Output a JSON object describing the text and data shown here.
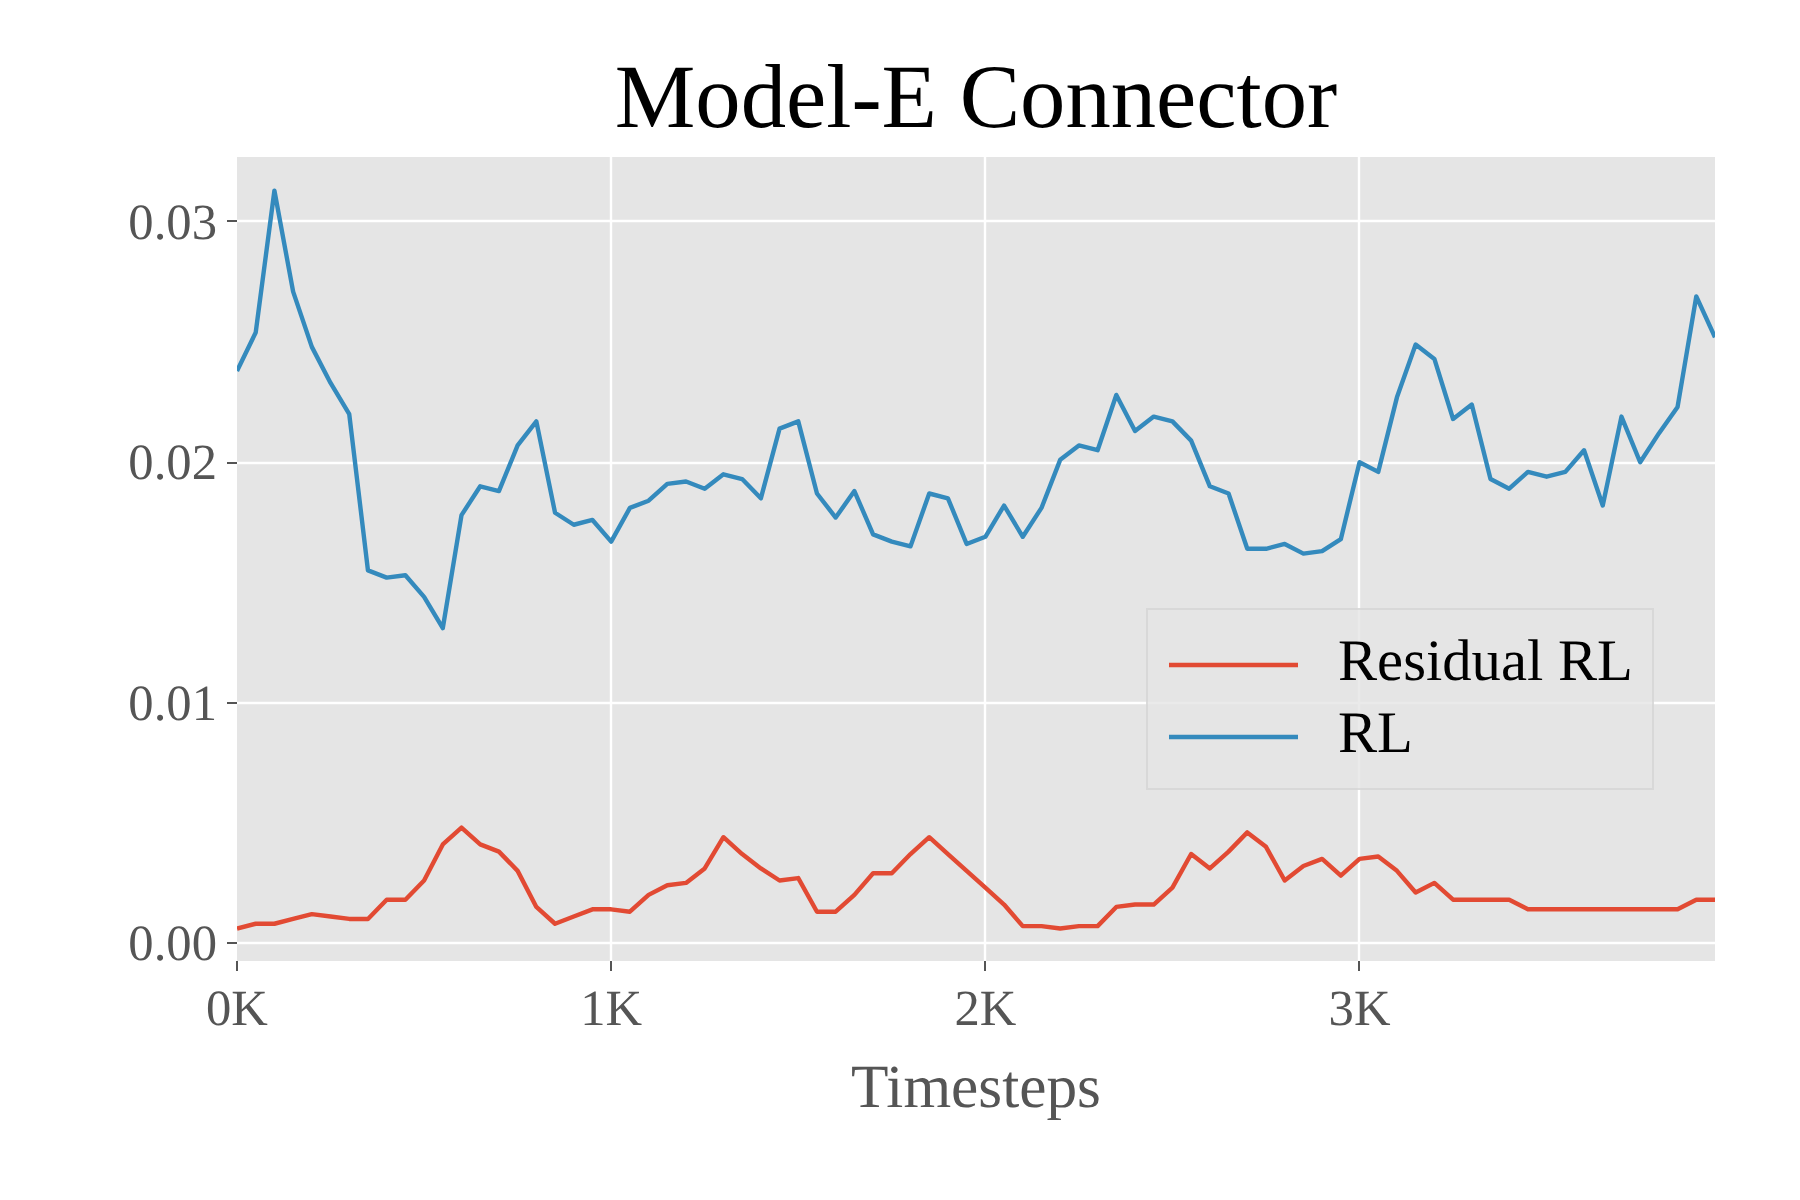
{
  "chart_data": {
    "type": "line",
    "title": "Model-E Connector",
    "xlabel": "Timesteps",
    "x": [
      0,
      50,
      100,
      150,
      200,
      250,
      300,
      350,
      400,
      450,
      500,
      550,
      600,
      650,
      700,
      750,
      800,
      850,
      900,
      950,
      1000,
      1050,
      1100,
      1150,
      1200,
      1250,
      1300,
      1350,
      1400,
      1450,
      1500,
      1550,
      1600,
      1650,
      1700,
      1750,
      1800,
      1850,
      1900,
      1950,
      2000,
      2050,
      2100,
      2150,
      2200,
      2250,
      2300,
      2350,
      2400,
      2450,
      2500,
      2550,
      2600,
      2650,
      2700,
      2750,
      2800,
      2850,
      2900,
      2950,
      3000,
      3050,
      3100,
      3150,
      3200,
      3250,
      3300,
      3350,
      3400,
      3450,
      3500,
      3550,
      3600,
      3650,
      3700,
      3750,
      3800,
      3850,
      3900,
      3950
    ],
    "series": [
      {
        "name": "Residual RL",
        "color": "#e24a33",
        "values": [
          0.0006,
          0.0008,
          0.0008,
          0.001,
          0.0012,
          0.0011,
          0.001,
          0.001,
          0.0018,
          0.0018,
          0.0026,
          0.0041,
          0.0048,
          0.0041,
          0.0038,
          0.003,
          0.0015,
          0.0008,
          0.0011,
          0.0014,
          0.0014,
          0.0013,
          0.002,
          0.0024,
          0.0025,
          0.0031,
          0.0044,
          0.0037,
          0.0031,
          0.0026,
          0.0027,
          0.0013,
          0.0013,
          0.002,
          0.0029,
          0.0029,
          0.0037,
          0.0044,
          0.0037,
          0.003,
          0.0023,
          0.0016,
          0.0007,
          0.0007,
          0.0006,
          0.0007,
          0.0007,
          0.0015,
          0.0016,
          0.0016,
          0.0023,
          0.0037,
          0.0031,
          0.0038,
          0.0046,
          0.004,
          0.0026,
          0.0032,
          0.0035,
          0.0028,
          0.0035,
          0.0036,
          0.003,
          0.0021,
          0.0025,
          0.0018,
          0.0018,
          0.0018,
          0.0018,
          0.0014,
          0.0014,
          0.0014,
          0.0014,
          0.0014,
          0.0014,
          0.0014,
          0.0014,
          0.0014,
          0.0018,
          0.0018
        ]
      },
      {
        "name": "RL",
        "color": "#348abd",
        "values": [
          0.0238,
          0.0254,
          0.0313,
          0.0271,
          0.0248,
          0.0233,
          0.022,
          0.0155,
          0.0152,
          0.0153,
          0.0144,
          0.0131,
          0.0178,
          0.019,
          0.0188,
          0.0207,
          0.0217,
          0.0179,
          0.0174,
          0.0176,
          0.0167,
          0.0181,
          0.0184,
          0.0191,
          0.0192,
          0.0189,
          0.0195,
          0.0193,
          0.0185,
          0.0214,
          0.0217,
          0.0187,
          0.0177,
          0.0188,
          0.017,
          0.0167,
          0.0165,
          0.0187,
          0.0185,
          0.0166,
          0.0169,
          0.0182,
          0.0169,
          0.0181,
          0.0201,
          0.0207,
          0.0205,
          0.0228,
          0.0213,
          0.0219,
          0.0217,
          0.0209,
          0.019,
          0.0187,
          0.0164,
          0.0164,
          0.0166,
          0.0162,
          0.0163,
          0.0168,
          0.02,
          0.0196,
          0.0227,
          0.0249,
          0.0243,
          0.0218,
          0.0224,
          0.0193,
          0.0189,
          0.0196,
          0.0194,
          0.0196,
          0.0205,
          0.0182,
          0.0219,
          0.02,
          0.0212,
          0.0223,
          0.0269,
          0.0252
        ]
      }
    ],
    "xlim": [
      0,
      3950
    ],
    "xticks": [
      {
        "value": 0,
        "label": "0K"
      },
      {
        "value": 1000,
        "label": "1K"
      },
      {
        "value": 2000,
        "label": "2K"
      },
      {
        "value": 3000,
        "label": "3K"
      }
    ],
    "ylim": [
      -0.00075,
      0.0327
    ],
    "yticks": [
      {
        "value": 0,
        "label": "0.00"
      },
      {
        "value": 0.01,
        "label": "0.01"
      },
      {
        "value": 0.02,
        "label": "0.02"
      },
      {
        "value": 0.03,
        "label": "0.03"
      }
    ],
    "grid": true,
    "legend": "right",
    "line_style": "solid",
    "marker": "none"
  }
}
